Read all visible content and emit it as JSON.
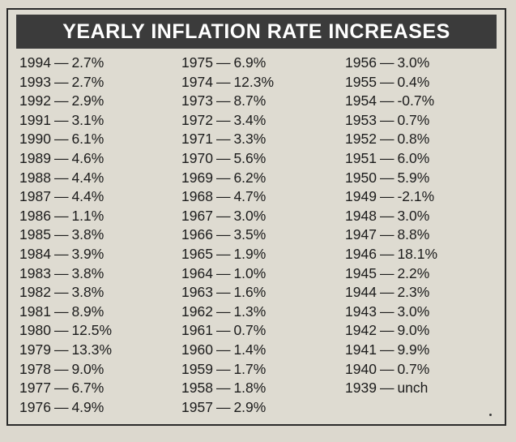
{
  "title": "YEARLY INFLATION RATE INCREASES",
  "dash": "—",
  "columns": [
    [
      {
        "year": "1994",
        "rate": "2.7%"
      },
      {
        "year": "1993",
        "rate": "2.7%"
      },
      {
        "year": "1992",
        "rate": "2.9%"
      },
      {
        "year": "1991",
        "rate": "3.1%"
      },
      {
        "year": "1990",
        "rate": "6.1%"
      },
      {
        "year": "1989",
        "rate": "4.6%"
      },
      {
        "year": "1988",
        "rate": "4.4%"
      },
      {
        "year": "1987",
        "rate": "4.4%"
      },
      {
        "year": "1986",
        "rate": "1.1%"
      },
      {
        "year": "1985",
        "rate": "3.8%"
      },
      {
        "year": "1984",
        "rate": "3.9%"
      },
      {
        "year": "1983",
        "rate": "3.8%"
      },
      {
        "year": "1982",
        "rate": "3.8%"
      },
      {
        "year": "1981",
        "rate": "8.9%"
      },
      {
        "year": "1980",
        "rate": "12.5%"
      },
      {
        "year": "1979",
        "rate": "13.3%"
      },
      {
        "year": "1978",
        "rate": "9.0%"
      },
      {
        "year": "1977",
        "rate": "6.7%"
      },
      {
        "year": "1976",
        "rate": "4.9%"
      }
    ],
    [
      {
        "year": "1975",
        "rate": "6.9%"
      },
      {
        "year": "1974",
        "rate": "12.3%"
      },
      {
        "year": "1973",
        "rate": "8.7%"
      },
      {
        "year": "1972",
        "rate": "3.4%"
      },
      {
        "year": "1971",
        "rate": "3.3%"
      },
      {
        "year": "1970",
        "rate": "5.6%"
      },
      {
        "year": "1969",
        "rate": "6.2%"
      },
      {
        "year": "1968",
        "rate": "4.7%"
      },
      {
        "year": "1967",
        "rate": "3.0%"
      },
      {
        "year": "1966",
        "rate": "3.5%"
      },
      {
        "year": "1965",
        "rate": "1.9%"
      },
      {
        "year": "1964",
        "rate": "1.0%"
      },
      {
        "year": "1963",
        "rate": "1.6%"
      },
      {
        "year": "1962",
        "rate": "1.3%"
      },
      {
        "year": "1961",
        "rate": "0.7%"
      },
      {
        "year": "1960",
        "rate": "1.4%"
      },
      {
        "year": "1959",
        "rate": "1.7%"
      },
      {
        "year": "1958",
        "rate": "1.8%"
      },
      {
        "year": "1957",
        "rate": "2.9%"
      }
    ],
    [
      {
        "year": "1956",
        "rate": "3.0%"
      },
      {
        "year": "1955",
        "rate": "0.4%"
      },
      {
        "year": "1954",
        "rate": "-0.7%"
      },
      {
        "year": "1953",
        "rate": "0.7%"
      },
      {
        "year": "1952",
        "rate": "0.8%"
      },
      {
        "year": "1951",
        "rate": "6.0%"
      },
      {
        "year": "1950",
        "rate": "5.9%"
      },
      {
        "year": "1949",
        "rate": "-2.1%"
      },
      {
        "year": "1948",
        "rate": "3.0%"
      },
      {
        "year": "1947",
        "rate": "8.8%"
      },
      {
        "year": "1946",
        "rate": "18.1%"
      },
      {
        "year": "1945",
        "rate": "2.2%"
      },
      {
        "year": "1944",
        "rate": "2.3%"
      },
      {
        "year": "1943",
        "rate": "3.0%"
      },
      {
        "year": "1942",
        "rate": "9.0%"
      },
      {
        "year": "1941",
        "rate": "9.9%"
      },
      {
        "year": "1940",
        "rate": "0.7%"
      },
      {
        "year": "1939",
        "rate": "unch"
      }
    ]
  ]
}
